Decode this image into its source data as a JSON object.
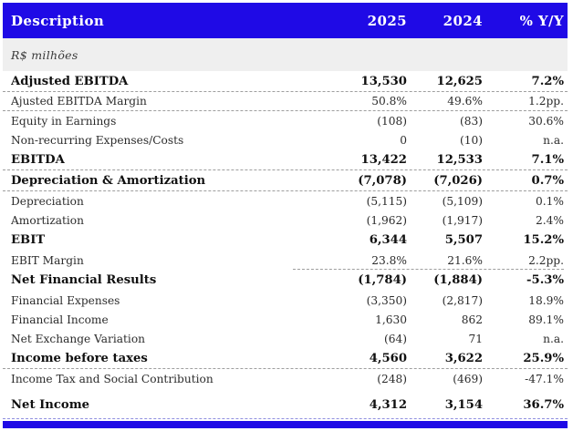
{
  "header": {
    "description": "Description",
    "col_2025": "2025",
    "col_2024": "2024",
    "col_yoy": "% Y/Y"
  },
  "subheader": {
    "units": "R$ milhões"
  },
  "colors": {
    "accent_blue": "#1F0AE6",
    "band_gray": "#EFEFEF",
    "divider_gray": "#9E9E9E",
    "footer_dash_blue": "#8F8FE0"
  },
  "rows": [
    {
      "label": "Adjusted EBITDA",
      "y2025": "13,530",
      "y2024": "12,625",
      "yoy": "7.2%",
      "emphasis": true,
      "divider": "full",
      "spacer_before": false
    },
    {
      "label": "Ajusted EBITDA Margin",
      "y2025": "50.8%",
      "y2024": "49.6%",
      "yoy": "1.2pp.",
      "emphasis": false,
      "divider": "full",
      "spacer_before": false
    },
    {
      "label": "Equity in Earnings",
      "y2025": "(108)",
      "y2024": "(83)",
      "yoy": "30.6%",
      "emphasis": false,
      "divider": "none",
      "spacer_before": false
    },
    {
      "label": "Non-recurring Expenses/Costs",
      "y2025": "0",
      "y2024": "(10)",
      "yoy": "n.a.",
      "emphasis": false,
      "divider": "none",
      "spacer_before": false
    },
    {
      "label": "EBITDA",
      "y2025": "13,422",
      "y2024": "12,533",
      "yoy": "7.1%",
      "emphasis": true,
      "divider": "full",
      "spacer_before": false
    },
    {
      "label": "Depreciation & Amortization",
      "y2025": "(7,078)",
      "y2024": "(7,026)",
      "yoy": "0.7%",
      "emphasis": true,
      "divider": "full",
      "spacer_before": false
    },
    {
      "label": "Depreciation",
      "y2025": "(5,115)",
      "y2024": "(5,109)",
      "yoy": "0.1%",
      "emphasis": false,
      "divider": "none",
      "spacer_before": false
    },
    {
      "label": "Amortization",
      "y2025": "(1,962)",
      "y2024": "(1,917)",
      "yoy": "2.4%",
      "emphasis": false,
      "divider": "none",
      "spacer_before": false
    },
    {
      "label": "EBIT",
      "y2025": "6,344",
      "y2024": "5,507",
      "yoy": "15.2%",
      "emphasis": true,
      "divider": "none",
      "spacer_before": false
    },
    {
      "label": "EBIT Margin",
      "y2025": "23.8%",
      "y2024": "21.6%",
      "yoy": "2.2pp.",
      "emphasis": false,
      "divider": "nums",
      "spacer_before": false
    },
    {
      "label": "Net Financial Results",
      "y2025": "(1,784)",
      "y2024": "(1,884)",
      "yoy": "-5.3%",
      "emphasis": true,
      "divider": "none",
      "spacer_before": false
    },
    {
      "label": "Financial Expenses",
      "y2025": "(3,350)",
      "y2024": "(2,817)",
      "yoy": "18.9%",
      "emphasis": false,
      "divider": "none",
      "spacer_before": false
    },
    {
      "label": "Financial Income",
      "y2025": "1,630",
      "y2024": "862",
      "yoy": "89.1%",
      "emphasis": false,
      "divider": "none",
      "spacer_before": false
    },
    {
      "label": "Net Exchange Variation",
      "y2025": "(64)",
      "y2024": "71",
      "yoy": "n.a.",
      "emphasis": false,
      "divider": "none",
      "spacer_before": false
    },
    {
      "label": "Income before taxes",
      "y2025": "4,560",
      "y2024": "3,622",
      "yoy": "25.9%",
      "emphasis": true,
      "divider": "full",
      "spacer_before": false
    },
    {
      "label": "Income Tax and Social Contribution",
      "y2025": "(248)",
      "y2024": "(469)",
      "yoy": "-47.1%",
      "emphasis": false,
      "divider": "none",
      "spacer_before": false
    },
    {
      "label": "Net Income",
      "y2025": "4,312",
      "y2024": "3,154",
      "yoy": "36.7%",
      "emphasis": true,
      "divider": "none",
      "spacer_before": true
    }
  ]
}
